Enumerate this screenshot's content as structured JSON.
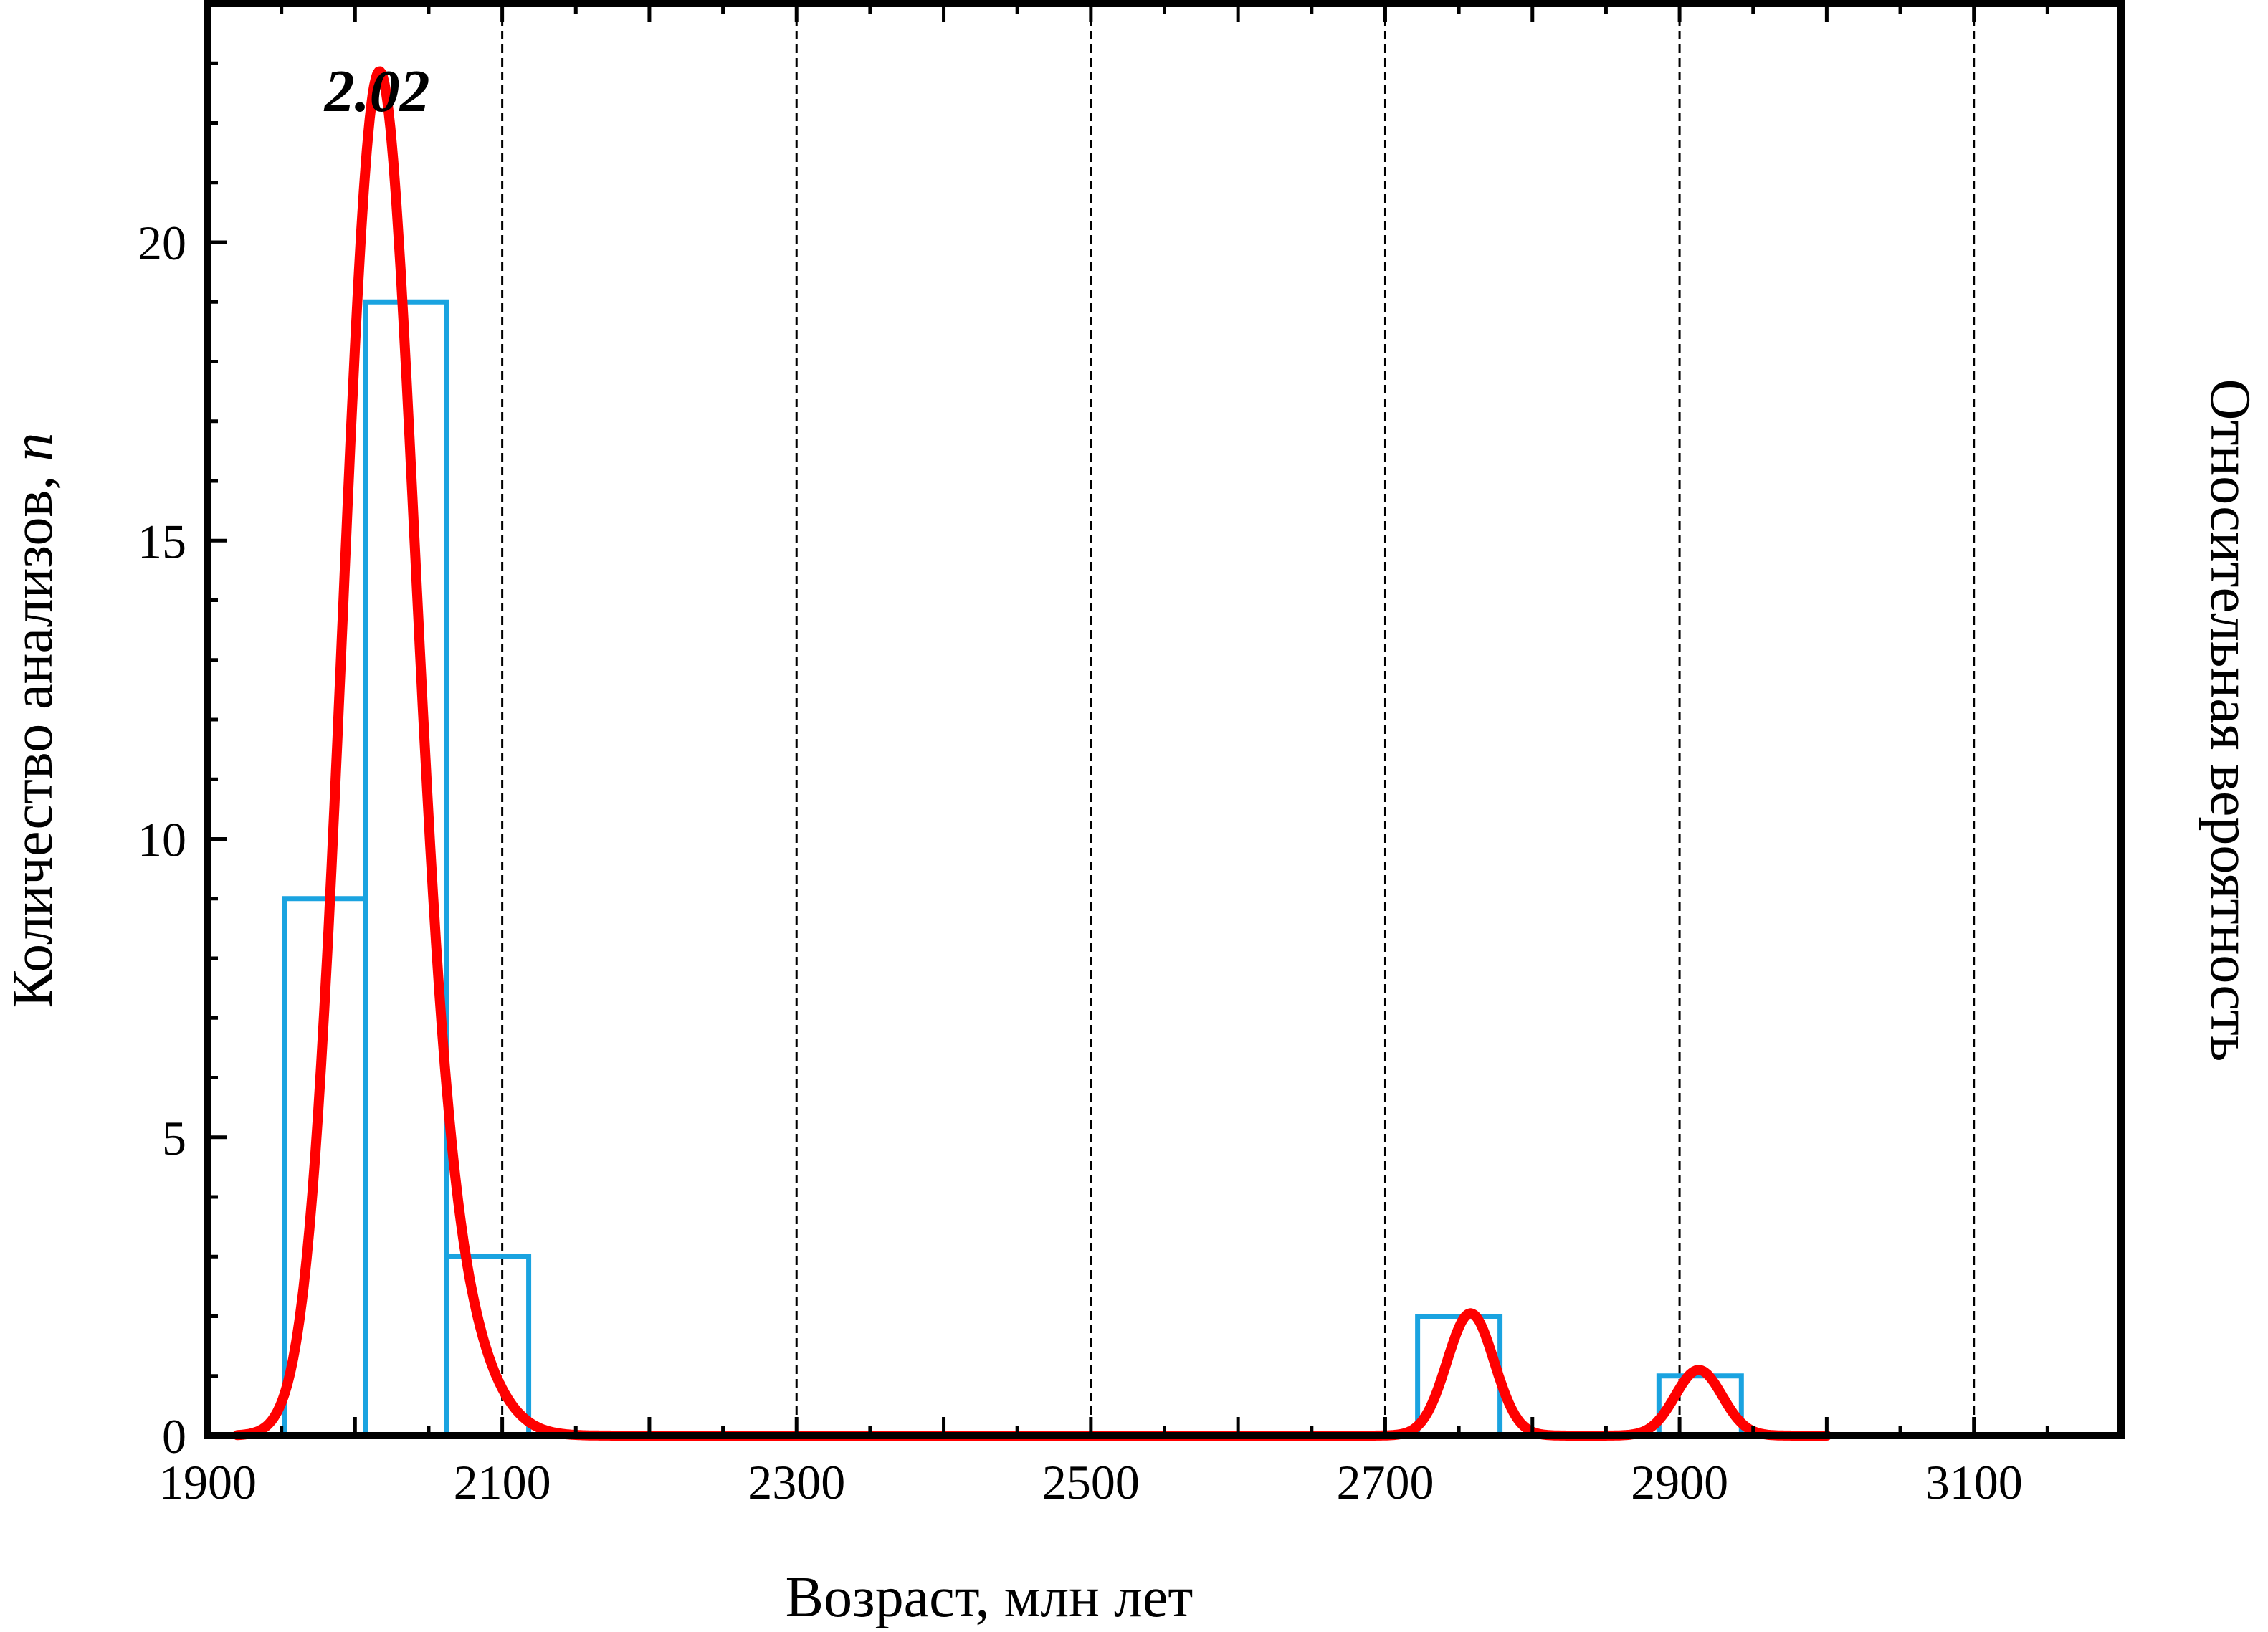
{
  "chart_data": {
    "type": "histogram+probability-density",
    "xlabel": "Возраст, млн лет",
    "ylabel_left": "Количество анализов, ",
    "ylabel_left_italic": "n",
    "ylabel_right": "Относительная вероятность",
    "xlim": [
      1900,
      3200
    ],
    "ylim": [
      0,
      24
    ],
    "x_ticks": [
      1900,
      2100,
      2300,
      2500,
      2700,
      2900,
      3100
    ],
    "y_ticks": [
      0,
      5,
      10,
      15,
      20
    ],
    "gridlines_x": [
      2100,
      2300,
      2500,
      2700,
      2900,
      3100
    ],
    "colors": {
      "histogram": "#1aa3e0",
      "pdf": "#ff0000",
      "axis": "#000000"
    },
    "histogram_bins": [
      {
        "x0": 1952,
        "x1": 2007,
        "count": 9
      },
      {
        "x0": 2007,
        "x1": 2062,
        "count": 19
      },
      {
        "x0": 2062,
        "x1": 2118,
        "count": 3
      },
      {
        "x0": 2722,
        "x1": 2778,
        "count": 2
      },
      {
        "x0": 2886,
        "x1": 2942,
        "count": 1
      }
    ],
    "pdf_peaks": [
      {
        "mu": 2015,
        "sigma_left": 24,
        "sigma_right": 24,
        "height": 21.3
      },
      {
        "mu": 2050,
        "sigma_left": 30,
        "sigma_right": 30,
        "height": 3.0
      },
      {
        "mu": 2758,
        "sigma_left": 16,
        "sigma_right": 16,
        "height": 2.05
      },
      {
        "mu": 2913,
        "sigma_left": 16,
        "sigma_right": 16,
        "height": 1.1
      }
    ],
    "pdf_range": [
      1920,
      3000
    ],
    "annotations": [
      {
        "text": "2.02",
        "x": 2015,
        "y": 22.2
      }
    ]
  }
}
